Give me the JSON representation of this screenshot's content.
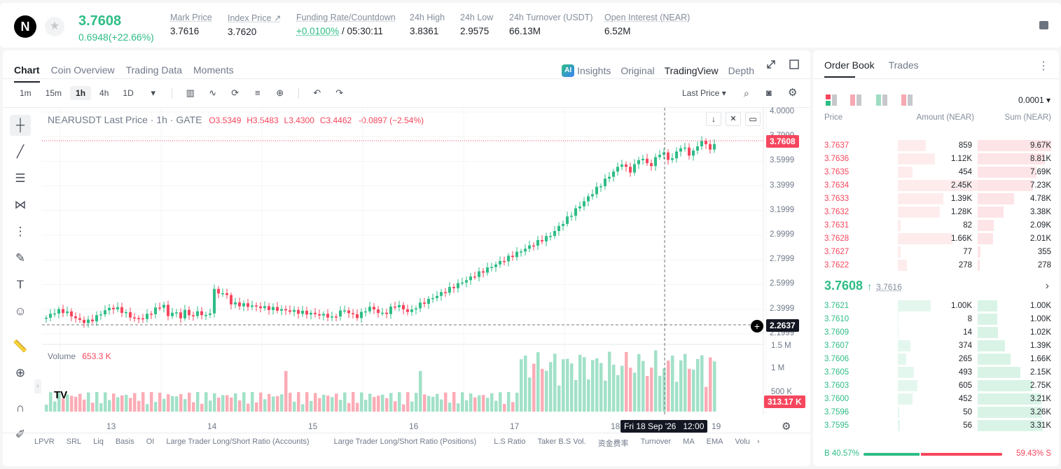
{
  "header": {
    "symbol_logo": "N",
    "price": "3.7608",
    "change": "0.6948(+22.66%)",
    "stats": [
      {
        "label": "Mark Price",
        "value": "3.7616"
      },
      {
        "label": "Index Price ↗",
        "value": "3.7620"
      },
      {
        "label": "Funding Rate/Countdown",
        "value_a": "+0.0100%",
        "value_b": "/ 05:30:11"
      },
      {
        "label": "24h High",
        "value": "3.8361"
      },
      {
        "label": "24h Low",
        "value": "2.9575"
      },
      {
        "label": "24h Turnover (USDT)",
        "value": "66.13M"
      },
      {
        "label": "Open Interest (NEAR)",
        "value": "6.52M"
      }
    ]
  },
  "chart": {
    "tabs": [
      "Chart",
      "Coin Overview",
      "Trading Data",
      "Moments"
    ],
    "right_tabs": [
      "Insights",
      "Original",
      "TradingView",
      "Depth"
    ],
    "ai": "AI",
    "timeframes": [
      "1m",
      "15m",
      "1h",
      "4h",
      "1D"
    ],
    "price_type": "Last Price ▾",
    "legend": {
      "title": "NEARUSDT Last Price · 1h · GATE",
      "o": "O3.5349",
      "h": "H3.5483",
      "l": "L3.4300",
      "c": "C3.4462",
      "chg": "-0.0897 (−2.54%)"
    },
    "volume_label": "Volume",
    "volume_value": "653.3 K",
    "price_ticks": [
      "4.0000",
      "3.7999",
      "3.5999",
      "3.3999",
      "3.1999",
      "2.9999",
      "2.7999",
      "2.5999",
      "2.3999",
      "2.1999"
    ],
    "volume_ticks": [
      "1.5 M",
      "1 M",
      "500 K"
    ],
    "date_ticks": [
      "13",
      "14",
      "15",
      "16",
      "17",
      "18",
      "19"
    ],
    "last_price_tag": "3.7608",
    "crosshair_price_tag": "2.2637",
    "volume_tag": "313.17 K",
    "crosshair_date": "Fri 18 Sep '26   12:00",
    "indicators": [
      "LPVR",
      "SRL",
      "Liq",
      "Basis",
      "OI",
      "Large Trader Long/Short Ratio (Accounts)",
      "Large Trader Long/Short Ratio (Positions)",
      "L.S Ratio",
      "Taker B.S Vol.",
      "资金费率",
      "Turnover",
      "MA",
      "EMA",
      "Volu"
    ]
  },
  "orderbook": {
    "tabs": [
      "Order Book",
      "Trades"
    ],
    "precision": "0.0001 ▾",
    "headers": [
      "Price",
      "Amount (NEAR)",
      "Sum (NEAR)"
    ],
    "asks": [
      {
        "p": "3.7637",
        "a": "859",
        "s": "9.67K"
      },
      {
        "p": "3.7636",
        "a": "1.12K",
        "s": "8.81K"
      },
      {
        "p": "3.7635",
        "a": "454",
        "s": "7.69K"
      },
      {
        "p": "3.7634",
        "a": "2.45K",
        "s": "7.23K"
      },
      {
        "p": "3.7633",
        "a": "1.39K",
        "s": "4.78K"
      },
      {
        "p": "3.7632",
        "a": "1.28K",
        "s": "3.38K"
      },
      {
        "p": "3.7631",
        "a": "82",
        "s": "2.09K"
      },
      {
        "p": "3.7628",
        "a": "1.66K",
        "s": "2.01K"
      },
      {
        "p": "3.7627",
        "a": "77",
        "s": "355"
      },
      {
        "p": "3.7622",
        "a": "278",
        "s": "278"
      }
    ],
    "last": "3.7608",
    "mark": "3.7616",
    "bids": [
      {
        "p": "3.7621",
        "a": "1.00K",
        "s": "1.00K"
      },
      {
        "p": "3.7610",
        "a": "8",
        "s": "1.00K"
      },
      {
        "p": "3.7609",
        "a": "14",
        "s": "1.02K"
      },
      {
        "p": "3.7607",
        "a": "374",
        "s": "1.39K"
      },
      {
        "p": "3.7606",
        "a": "265",
        "s": "1.66K"
      },
      {
        "p": "3.7605",
        "a": "493",
        "s": "2.15K"
      },
      {
        "p": "3.7603",
        "a": "605",
        "s": "2.75K"
      },
      {
        "p": "3.7600",
        "a": "452",
        "s": "3.21K"
      },
      {
        "p": "3.7596",
        "a": "50",
        "s": "3.26K"
      },
      {
        "p": "3.7595",
        "a": "56",
        "s": "3.31K"
      }
    ],
    "buy_ratio": "B 40.57%",
    "sell_ratio": "59.43% S",
    "buy_fraction": 0.4057
  },
  "colors": {
    "up": "#2ebd85",
    "down": "#f6465d"
  }
}
